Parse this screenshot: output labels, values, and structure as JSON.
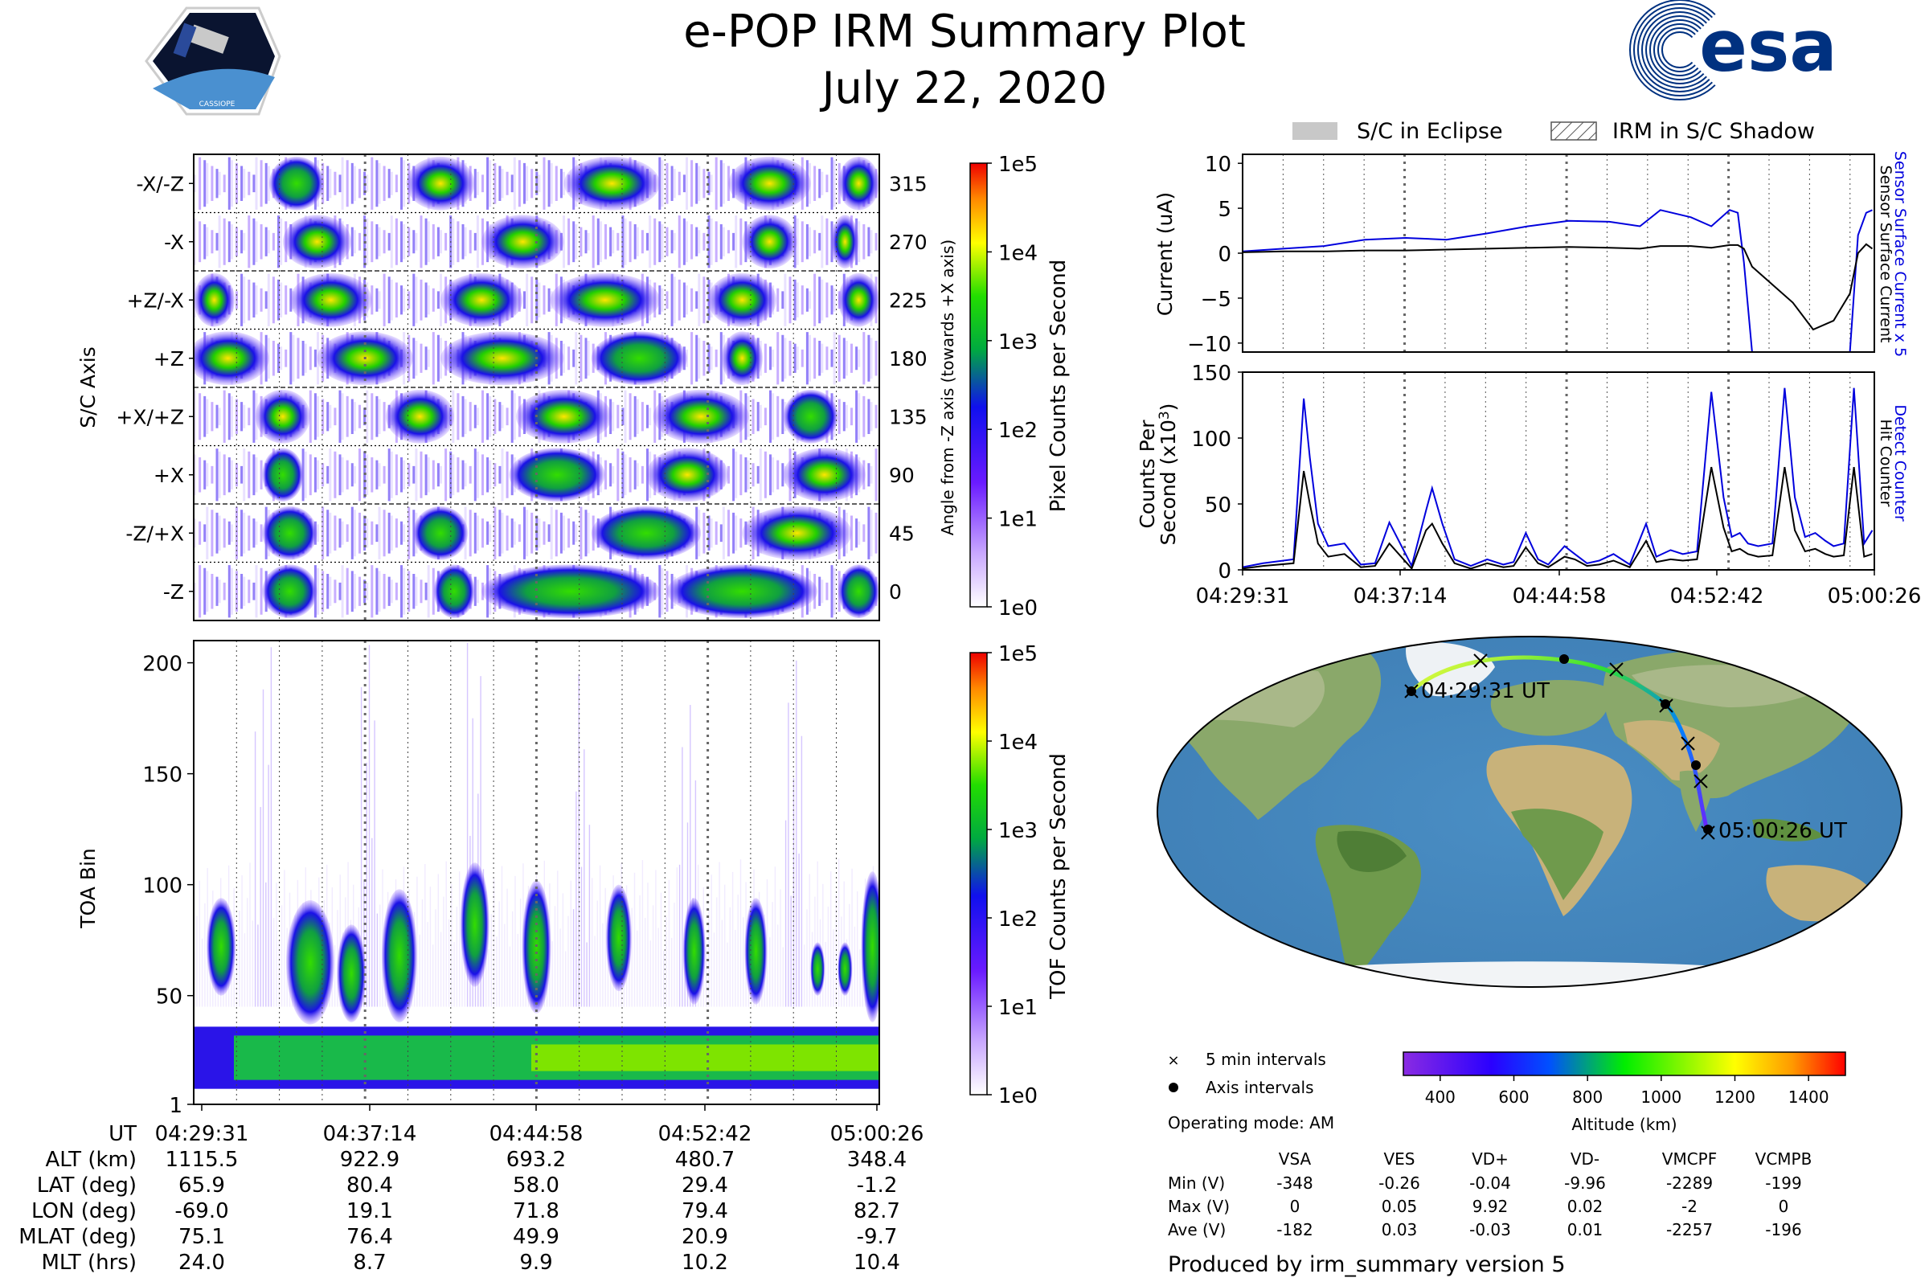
{
  "title": "e-POP IRM Summary Plot",
  "date": "July 22, 2020",
  "logos": {
    "cassiope_text": "CASSIOPE",
    "esa_text": "esa"
  },
  "time_ticks": [
    "04:29:31",
    "04:37:14",
    "04:44:58",
    "04:52:42",
    "05:00:26"
  ],
  "legend": {
    "eclipse": "S/C in Eclipse",
    "shadow": "IRM in S/C Shadow"
  },
  "panel_axis": {
    "ylabel": "S/C Axis",
    "right_label": "Angle from -Z axis (towards +X axis)",
    "rows": [
      {
        "name": "-X/-Z",
        "angle": "315"
      },
      {
        "name": "-X",
        "angle": "270"
      },
      {
        "name": "+Z/-X",
        "angle": "225"
      },
      {
        "name": "+Z",
        "angle": "180"
      },
      {
        "name": "+X/+Z",
        "angle": "135"
      },
      {
        "name": "+X",
        "angle": "90"
      },
      {
        "name": "-Z/+X",
        "angle": "45"
      },
      {
        "name": "-Z",
        "angle": "0"
      }
    ],
    "colorbar_label": "Pixel Counts per Second",
    "colorbar_ticks": [
      "1e5",
      "1e4",
      "1e3",
      "1e2",
      "1e1",
      "1e0"
    ]
  },
  "panel_toa": {
    "ylabel": "TOA Bin",
    "yticks": [
      "200",
      "150",
      "100",
      "50",
      "1"
    ],
    "colorbar_label": "TOF Counts per Second",
    "colorbar_ticks": [
      "1e5",
      "1e4",
      "1e3",
      "1e2",
      "1e1",
      "1e0"
    ]
  },
  "ephemeris": {
    "labels": [
      "UT",
      "ALT (km)",
      "LAT (deg)",
      "LON (deg)",
      "MLAT (deg)",
      "MLT (hrs)"
    ],
    "rows": [
      [
        "04:29:31",
        "04:37:14",
        "04:44:58",
        "04:52:42",
        "05:00:26"
      ],
      [
        "1115.5",
        "922.9",
        "693.2",
        "480.7",
        "348.4"
      ],
      [
        "65.9",
        "80.4",
        "58.0",
        "29.4",
        "-1.2"
      ],
      [
        "-69.0",
        "19.1",
        "71.8",
        "79.4",
        "82.7"
      ],
      [
        "75.1",
        "76.4",
        "49.9",
        "20.9",
        "-9.7"
      ],
      [
        "24.0",
        "8.7",
        "9.9",
        "10.2",
        "10.4"
      ]
    ]
  },
  "panel_current": {
    "ylabel": "Current (uA)",
    "yticks": [
      "10",
      "5",
      "0",
      "−5",
      "−10"
    ],
    "ylim": [
      -11,
      11
    ],
    "right_labels": {
      "blue": "Sensor Surface Current x 5",
      "black": "Sensor Surface Current"
    }
  },
  "panel_counts": {
    "ylabel1": "Counts Per",
    "ylabel2": "Second (x10",
    "ylabel_sup": "3",
    "ylabel_close": ")",
    "yticks": [
      "150",
      "100",
      "50",
      "0"
    ],
    "ylim": [
      0,
      150
    ],
    "right_labels": {
      "blue": "Detect Counter",
      "black": "Hit Counter"
    }
  },
  "map": {
    "start_label": "04:29:31 UT",
    "end_label": "05:00:26 UT"
  },
  "map_legend": {
    "five_min": "5 min intervals",
    "axis": "Axis intervals"
  },
  "altitude_colorbar": {
    "label": "Altitude (km)",
    "ticks": [
      "400",
      "600",
      "800",
      "1000",
      "1200",
      "1400"
    ],
    "range": [
      300,
      1500
    ]
  },
  "operating_mode": "Operating mode: AM",
  "voltage_table": {
    "columns": [
      "VSA",
      "VES",
      "VD+",
      "VD-",
      "VMCPF",
      "VCMPB"
    ],
    "rows": [
      {
        "label": "Min (V)",
        "values": [
          "-348",
          "-0.26",
          "-0.04",
          "-9.96",
          "-2289",
          "-199"
        ]
      },
      {
        "label": "Max (V)",
        "values": [
          "0",
          "0.05",
          "9.92",
          "0.02",
          "-2",
          "0"
        ]
      },
      {
        "label": "Ave (V)",
        "values": [
          "-182",
          "0.03",
          "-0.03",
          "0.01",
          "-2257",
          "-196"
        ]
      }
    ]
  },
  "footer": "Produced by irm_summary version 5",
  "chart_data": [
    {
      "type": "heatmap",
      "title": "",
      "ylabel": "S/C Axis",
      "categories": [
        "-X/-Z",
        "-X",
        "+Z/-X",
        "+Z",
        "+X/+Z",
        "+X",
        "-Z/+X",
        "-Z"
      ],
      "x": [
        "04:29:31",
        "04:37:14",
        "04:44:58",
        "04:52:42",
        "05:00:26"
      ],
      "colorbar": "Pixel Counts per Second",
      "clim": [
        "1e0",
        "1e5"
      ],
      "log_scale": true
    },
    {
      "type": "heatmap",
      "ylabel": "TOA Bin",
      "ylim": [
        1,
        210
      ],
      "x": [
        "04:29:31",
        "04:37:14",
        "04:44:58",
        "04:52:42",
        "05:00:26"
      ],
      "colorbar": "TOF Counts per Second",
      "clim": [
        "1e0",
        "1e5"
      ],
      "log_scale": true
    },
    {
      "type": "line",
      "ylabel": "Current (uA)",
      "ylim": [
        -11,
        11
      ],
      "x_minutes": [
        0,
        2,
        4,
        6,
        8,
        10,
        12,
        14,
        16,
        18,
        19.5,
        20.5,
        22,
        23,
        23.9,
        24.3,
        24.6,
        25,
        26,
        27,
        28,
        29,
        29.8,
        30.2,
        30.6,
        30.9
      ],
      "series": [
        {
          "name": "Sensor Surface Current x 5",
          "color": "#0000dd",
          "values": [
            0.2,
            0.5,
            0.8,
            1.5,
            1.7,
            1.5,
            2.2,
            3.0,
            3.6,
            3.5,
            3.0,
            4.8,
            4.0,
            3.0,
            4.8,
            4.5,
            -1,
            -11,
            null,
            null,
            null,
            null,
            -11,
            2,
            4.5,
            4.8
          ]
        },
        {
          "name": "Sensor Surface Current",
          "color": "#000000",
          "values": [
            0.1,
            0.2,
            0.2,
            0.3,
            0.3,
            0.4,
            0.5,
            0.6,
            0.7,
            0.6,
            0.5,
            0.8,
            0.8,
            0.6,
            0.9,
            0.9,
            0.5,
            -1.5,
            -3.5,
            -5.5,
            -8.5,
            -7.5,
            -4.5,
            0,
            1.0,
            0.5
          ]
        }
      ]
    },
    {
      "type": "line",
      "ylabel": "Counts Per Second (x10^3)",
      "ylim": [
        0,
        150
      ],
      "x_minutes": [
        0,
        1.0,
        2.5,
        3.0,
        3.3,
        3.7,
        4.2,
        5,
        5.8,
        6.5,
        7.2,
        8.3,
        9.0,
        9.3,
        9.8,
        10.4,
        11.2,
        12.0,
        12.8,
        13.3,
        13.9,
        14.5,
        15.0,
        15.8,
        16.3,
        16.9,
        17.5,
        18.2,
        19.0,
        19.8,
        20.3,
        21.0,
        21.6,
        22.3,
        23.0,
        23.6,
        24.0,
        24.4,
        24.8,
        25.3,
        26.0,
        26.6,
        27.1,
        27.6,
        28.1,
        28.6,
        29.0,
        29.5,
        30.0,
        30.5,
        30.9
      ],
      "series": [
        {
          "name": "Detect Counter",
          "color": "#0000dd",
          "values": [
            2,
            5,
            8,
            130,
            85,
            35,
            18,
            20,
            4,
            5,
            36,
            3,
            45,
            62,
            35,
            8,
            3,
            8,
            4,
            6,
            28,
            8,
            4,
            18,
            12,
            5,
            7,
            12,
            4,
            35,
            10,
            15,
            12,
            14,
            135,
            55,
            25,
            28,
            20,
            18,
            20,
            138,
            55,
            25,
            28,
            22,
            18,
            20,
            138,
            20,
            30
          ]
        },
        {
          "name": "Hit Counter",
          "color": "#000000",
          "values": [
            1,
            3,
            5,
            75,
            50,
            20,
            10,
            12,
            2,
            3,
            20,
            1,
            30,
            35,
            20,
            5,
            1,
            5,
            2,
            3,
            17,
            5,
            2,
            10,
            8,
            3,
            4,
            7,
            2,
            22,
            6,
            8,
            7,
            8,
            78,
            32,
            14,
            16,
            12,
            10,
            11,
            78,
            30,
            14,
            16,
            12,
            10,
            11,
            78,
            10,
            12
          ]
        }
      ]
    }
  ]
}
